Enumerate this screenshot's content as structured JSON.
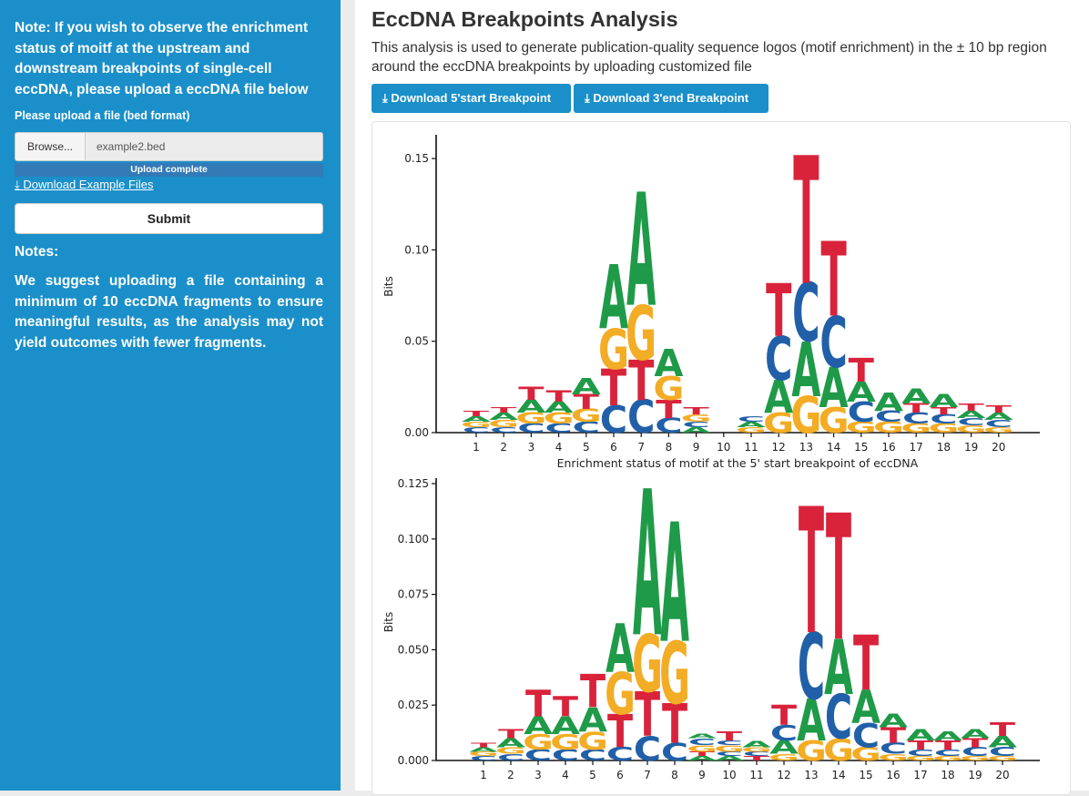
{
  "sidebar": {
    "note": "Note: If you wish to observe the enrichment status of moitf at the upstream and downstream breakpoints of single-cell eccDNA, please upload a eccDNA file below",
    "upload_label": "Please upload a file (bed format)",
    "browse_label": "Browse...",
    "file_name": "example2.bed",
    "progress_label": "Upload complete",
    "download_example": "Download Example Files",
    "submit_label": "Submit",
    "notes_title": "Notes:",
    "notes_body": "We suggest uploading a file containing a minimum of 10 eccDNA fragments to ensure meaningful results, as the analysis may not yield outcomes with fewer fragments."
  },
  "main": {
    "title": "EccDNA Breakpoints Analysis",
    "description": "This analysis is used to generate publication-quality sequence logos (motif enrichment) in the ± 10 bp region around the eccDNA breakpoints by uploading customized file",
    "download_start_label": "Download 5'start Breakpoint",
    "download_end_label": "Download 3'end Breakpoint"
  },
  "colors": {
    "A": "#1f9a48",
    "C": "#2160a8",
    "G": "#f3ac25",
    "T": "#d8233b",
    "sidebar": "#1a8fc9"
  },
  "chart_data": [
    {
      "type": "sequence_logo",
      "title": "",
      "xlabel": "Enrichment status of motif at the 5' start  breakpoint of eccDNA",
      "ylabel": "Bits",
      "ylim": [
        0,
        0.16
      ],
      "yticks": [
        "0.00",
        "0.05",
        "0.10",
        "0.15"
      ],
      "ytick_values": [
        0,
        0.05,
        0.1,
        0.15
      ],
      "positions": [
        "1",
        "2",
        "3",
        "4",
        "5",
        "6",
        "7",
        "8",
        "9",
        "10",
        "11",
        "12",
        "13",
        "14",
        "15",
        "16",
        "17",
        "18",
        "19",
        "20"
      ],
      "letters": [
        [
          [
            "C",
            0.003
          ],
          [
            "G",
            0.003
          ],
          [
            "A",
            0.003
          ],
          [
            "T",
            0.003
          ]
        ],
        [
          [
            "C",
            0.003
          ],
          [
            "G",
            0.004
          ],
          [
            "A",
            0.004
          ],
          [
            "T",
            0.003
          ]
        ],
        [
          [
            "C",
            0.005
          ],
          [
            "G",
            0.006
          ],
          [
            "A",
            0.007
          ],
          [
            "T",
            0.007
          ]
        ],
        [
          [
            "C",
            0.005
          ],
          [
            "G",
            0.006
          ],
          [
            "A",
            0.006
          ],
          [
            "T",
            0.006
          ]
        ],
        [
          [
            "C",
            0.006
          ],
          [
            "G",
            0.007
          ],
          [
            "T",
            0.008
          ],
          [
            "A",
            0.009
          ]
        ],
        [
          [
            "C",
            0.015
          ],
          [
            "T",
            0.02
          ],
          [
            "G",
            0.022
          ],
          [
            "A",
            0.035
          ]
        ],
        [
          [
            "C",
            0.018
          ],
          [
            "T",
            0.022
          ],
          [
            "G",
            0.03
          ],
          [
            "A",
            0.062
          ]
        ],
        [
          [
            "C",
            0.008
          ],
          [
            "T",
            0.01
          ],
          [
            "G",
            0.013
          ],
          [
            "A",
            0.015
          ]
        ],
        [
          [
            "A",
            0.003
          ],
          [
            "C",
            0.003
          ],
          [
            "G",
            0.004
          ],
          [
            "T",
            0.004
          ]
        ],
        [],
        [
          [
            "G",
            0.003
          ],
          [
            "A",
            0.003
          ],
          [
            "C",
            0.003
          ]
        ],
        [
          [
            "G",
            0.011
          ],
          [
            "A",
            0.018
          ],
          [
            "C",
            0.024
          ],
          [
            "T",
            0.029
          ]
        ],
        [
          [
            "G",
            0.02
          ],
          [
            "A",
            0.03
          ],
          [
            "C",
            0.032
          ],
          [
            "T",
            0.07
          ]
        ],
        [
          [
            "G",
            0.014
          ],
          [
            "A",
            0.022
          ],
          [
            "C",
            0.028
          ],
          [
            "T",
            0.041
          ]
        ],
        [
          [
            "G",
            0.006
          ],
          [
            "C",
            0.011
          ],
          [
            "A",
            0.011
          ],
          [
            "T",
            0.013
          ]
        ],
        [
          [
            "G",
            0.006
          ],
          [
            "C",
            0.006
          ],
          [
            "A",
            0.01
          ]
        ],
        [
          [
            "G",
            0.005
          ],
          [
            "C",
            0.006
          ],
          [
            "T",
            0.005
          ],
          [
            "A",
            0.008
          ]
        ],
        [
          [
            "G",
            0.005
          ],
          [
            "C",
            0.005
          ],
          [
            "T",
            0.004
          ],
          [
            "A",
            0.007
          ]
        ],
        [
          [
            "G",
            0.004
          ],
          [
            "C",
            0.004
          ],
          [
            "A",
            0.004
          ],
          [
            "T",
            0.004
          ]
        ],
        [
          [
            "G",
            0.003
          ],
          [
            "C",
            0.004
          ],
          [
            "A",
            0.004
          ],
          [
            "T",
            0.004
          ]
        ]
      ]
    },
    {
      "type": "sequence_logo",
      "title": "",
      "xlabel": "",
      "ylabel": "Bits",
      "ylim": [
        0,
        0.125
      ],
      "yticks": [
        "0.000",
        "0.025",
        "0.050",
        "0.075",
        "0.100",
        "0.125"
      ],
      "ytick_values": [
        0,
        0.025,
        0.05,
        0.075,
        0.1,
        0.125
      ],
      "positions": [
        "1",
        "2",
        "3",
        "4",
        "5",
        "6",
        "7",
        "8",
        "9",
        "10",
        "11",
        "12",
        "13",
        "14",
        "15",
        "16",
        "17",
        "18",
        "19",
        "20"
      ],
      "letters": [
        [
          [
            "C",
            0.002
          ],
          [
            "G",
            0.002
          ],
          [
            "A",
            0.002
          ],
          [
            "T",
            0.002
          ]
        ],
        [
          [
            "C",
            0.003
          ],
          [
            "G",
            0.003
          ],
          [
            "A",
            0.004
          ],
          [
            "T",
            0.004
          ]
        ],
        [
          [
            "C",
            0.005
          ],
          [
            "G",
            0.007
          ],
          [
            "A",
            0.008
          ],
          [
            "T",
            0.012
          ]
        ],
        [
          [
            "C",
            0.005
          ],
          [
            "G",
            0.007
          ],
          [
            "A",
            0.008
          ],
          [
            "T",
            0.009
          ]
        ],
        [
          [
            "C",
            0.005
          ],
          [
            "G",
            0.008
          ],
          [
            "A",
            0.011
          ],
          [
            "T",
            0.015
          ]
        ],
        [
          [
            "C",
            0.006
          ],
          [
            "T",
            0.015
          ],
          [
            "G",
            0.019
          ],
          [
            "A",
            0.022
          ]
        ],
        [
          [
            "C",
            0.011
          ],
          [
            "T",
            0.02
          ],
          [
            "G",
            0.026
          ],
          [
            "A",
            0.066
          ]
        ],
        [
          [
            "C",
            0.008
          ],
          [
            "T",
            0.018
          ],
          [
            "G",
            0.028
          ],
          [
            "A",
            0.054
          ]
        ],
        [
          [
            "A",
            0.002
          ],
          [
            "T",
            0.002
          ],
          [
            "G",
            0.003
          ],
          [
            "C",
            0.003
          ],
          [
            "A",
            0.002
          ]
        ],
        [
          [
            "A",
            0.002
          ],
          [
            "C",
            0.002
          ],
          [
            "G",
            0.003
          ],
          [
            "C",
            0.002
          ],
          [
            "T",
            0.004
          ]
        ],
        [
          [
            "T",
            0.002
          ],
          [
            "C",
            0.002
          ],
          [
            "G",
            0.002
          ],
          [
            "A",
            0.003
          ]
        ],
        [
          [
            "G",
            0.003
          ],
          [
            "A",
            0.006
          ],
          [
            "C",
            0.007
          ],
          [
            "T",
            0.009
          ]
        ],
        [
          [
            "G",
            0.009
          ],
          [
            "A",
            0.019
          ],
          [
            "C",
            0.03
          ],
          [
            "T",
            0.057
          ]
        ],
        [
          [
            "G",
            0.01
          ],
          [
            "C",
            0.02
          ],
          [
            "A",
            0.025
          ],
          [
            "T",
            0.057
          ]
        ],
        [
          [
            "G",
            0.006
          ],
          [
            "C",
            0.011
          ],
          [
            "A",
            0.015
          ],
          [
            "T",
            0.025
          ]
        ],
        [
          [
            "G",
            0.003
          ],
          [
            "C",
            0.005
          ],
          [
            "T",
            0.007
          ],
          [
            "A",
            0.006
          ]
        ],
        [
          [
            "G",
            0.002
          ],
          [
            "C",
            0.003
          ],
          [
            "T",
            0.004
          ],
          [
            "A",
            0.005
          ]
        ],
        [
          [
            "G",
            0.002
          ],
          [
            "C",
            0.003
          ],
          [
            "T",
            0.004
          ],
          [
            "A",
            0.004
          ]
        ],
        [
          [
            "G",
            0.002
          ],
          [
            "C",
            0.004
          ],
          [
            "T",
            0.004
          ],
          [
            "A",
            0.004
          ]
        ],
        [
          [
            "G",
            0.002
          ],
          [
            "C",
            0.004
          ],
          [
            "A",
            0.005
          ],
          [
            "T",
            0.006
          ]
        ]
      ]
    }
  ]
}
